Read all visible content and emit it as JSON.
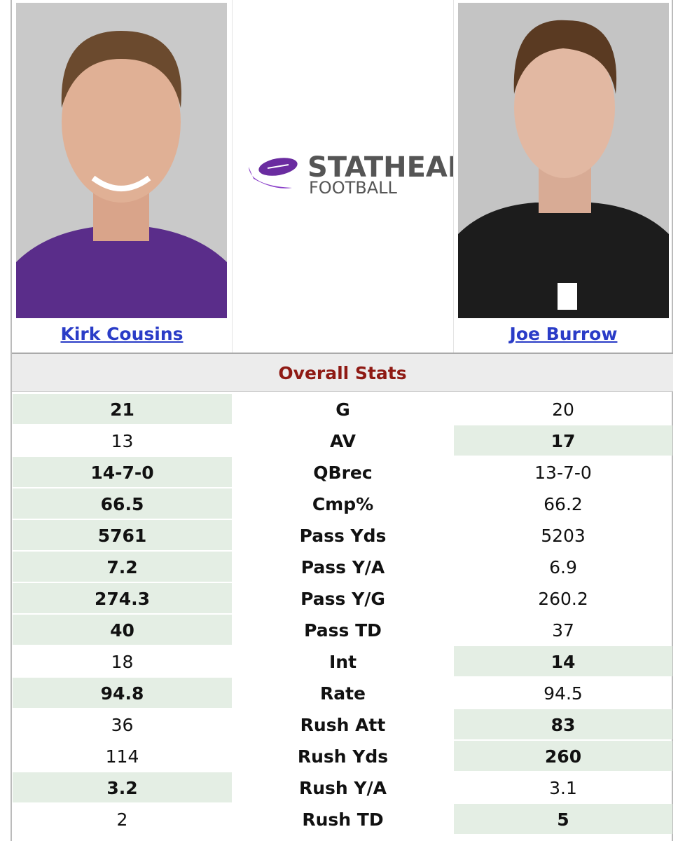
{
  "players": [
    {
      "name": "Kirk Cousins"
    },
    {
      "name": "Joe Burrow"
    }
  ],
  "logo": {
    "line1": "STATHEAD",
    "line2": "FOOTBALL"
  },
  "section_title": "Overall Stats",
  "rows": [
    {
      "left": "21",
      "stat": "G",
      "right": "20",
      "highlight": "left"
    },
    {
      "left": "13",
      "stat": "AV",
      "right": "17",
      "highlight": "right"
    },
    {
      "left": "14-7-0",
      "stat": "QBrec",
      "right": "13-7-0",
      "highlight": "left"
    },
    {
      "left": "66.5",
      "stat": "Cmp%",
      "right": "66.2",
      "highlight": "left"
    },
    {
      "left": "5761",
      "stat": "Pass Yds",
      "right": "5203",
      "highlight": "left"
    },
    {
      "left": "7.2",
      "stat": "Pass Y/A",
      "right": "6.9",
      "highlight": "left"
    },
    {
      "left": "274.3",
      "stat": "Pass Y/G",
      "right": "260.2",
      "highlight": "left"
    },
    {
      "left": "40",
      "stat": "Pass TD",
      "right": "37",
      "highlight": "left"
    },
    {
      "left": "18",
      "stat": "Int",
      "right": "14",
      "highlight": "right"
    },
    {
      "left": "94.8",
      "stat": "Rate",
      "right": "94.5",
      "highlight": "left"
    },
    {
      "left": "36",
      "stat": "Rush Att",
      "right": "83",
      "highlight": "right"
    },
    {
      "left": "114",
      "stat": "Rush Yds",
      "right": "260",
      "highlight": "right"
    },
    {
      "left": "3.2",
      "stat": "Rush Y/A",
      "right": "3.1",
      "highlight": "left"
    },
    {
      "left": "2",
      "stat": "Rush TD",
      "right": "5",
      "highlight": "right"
    }
  ]
}
